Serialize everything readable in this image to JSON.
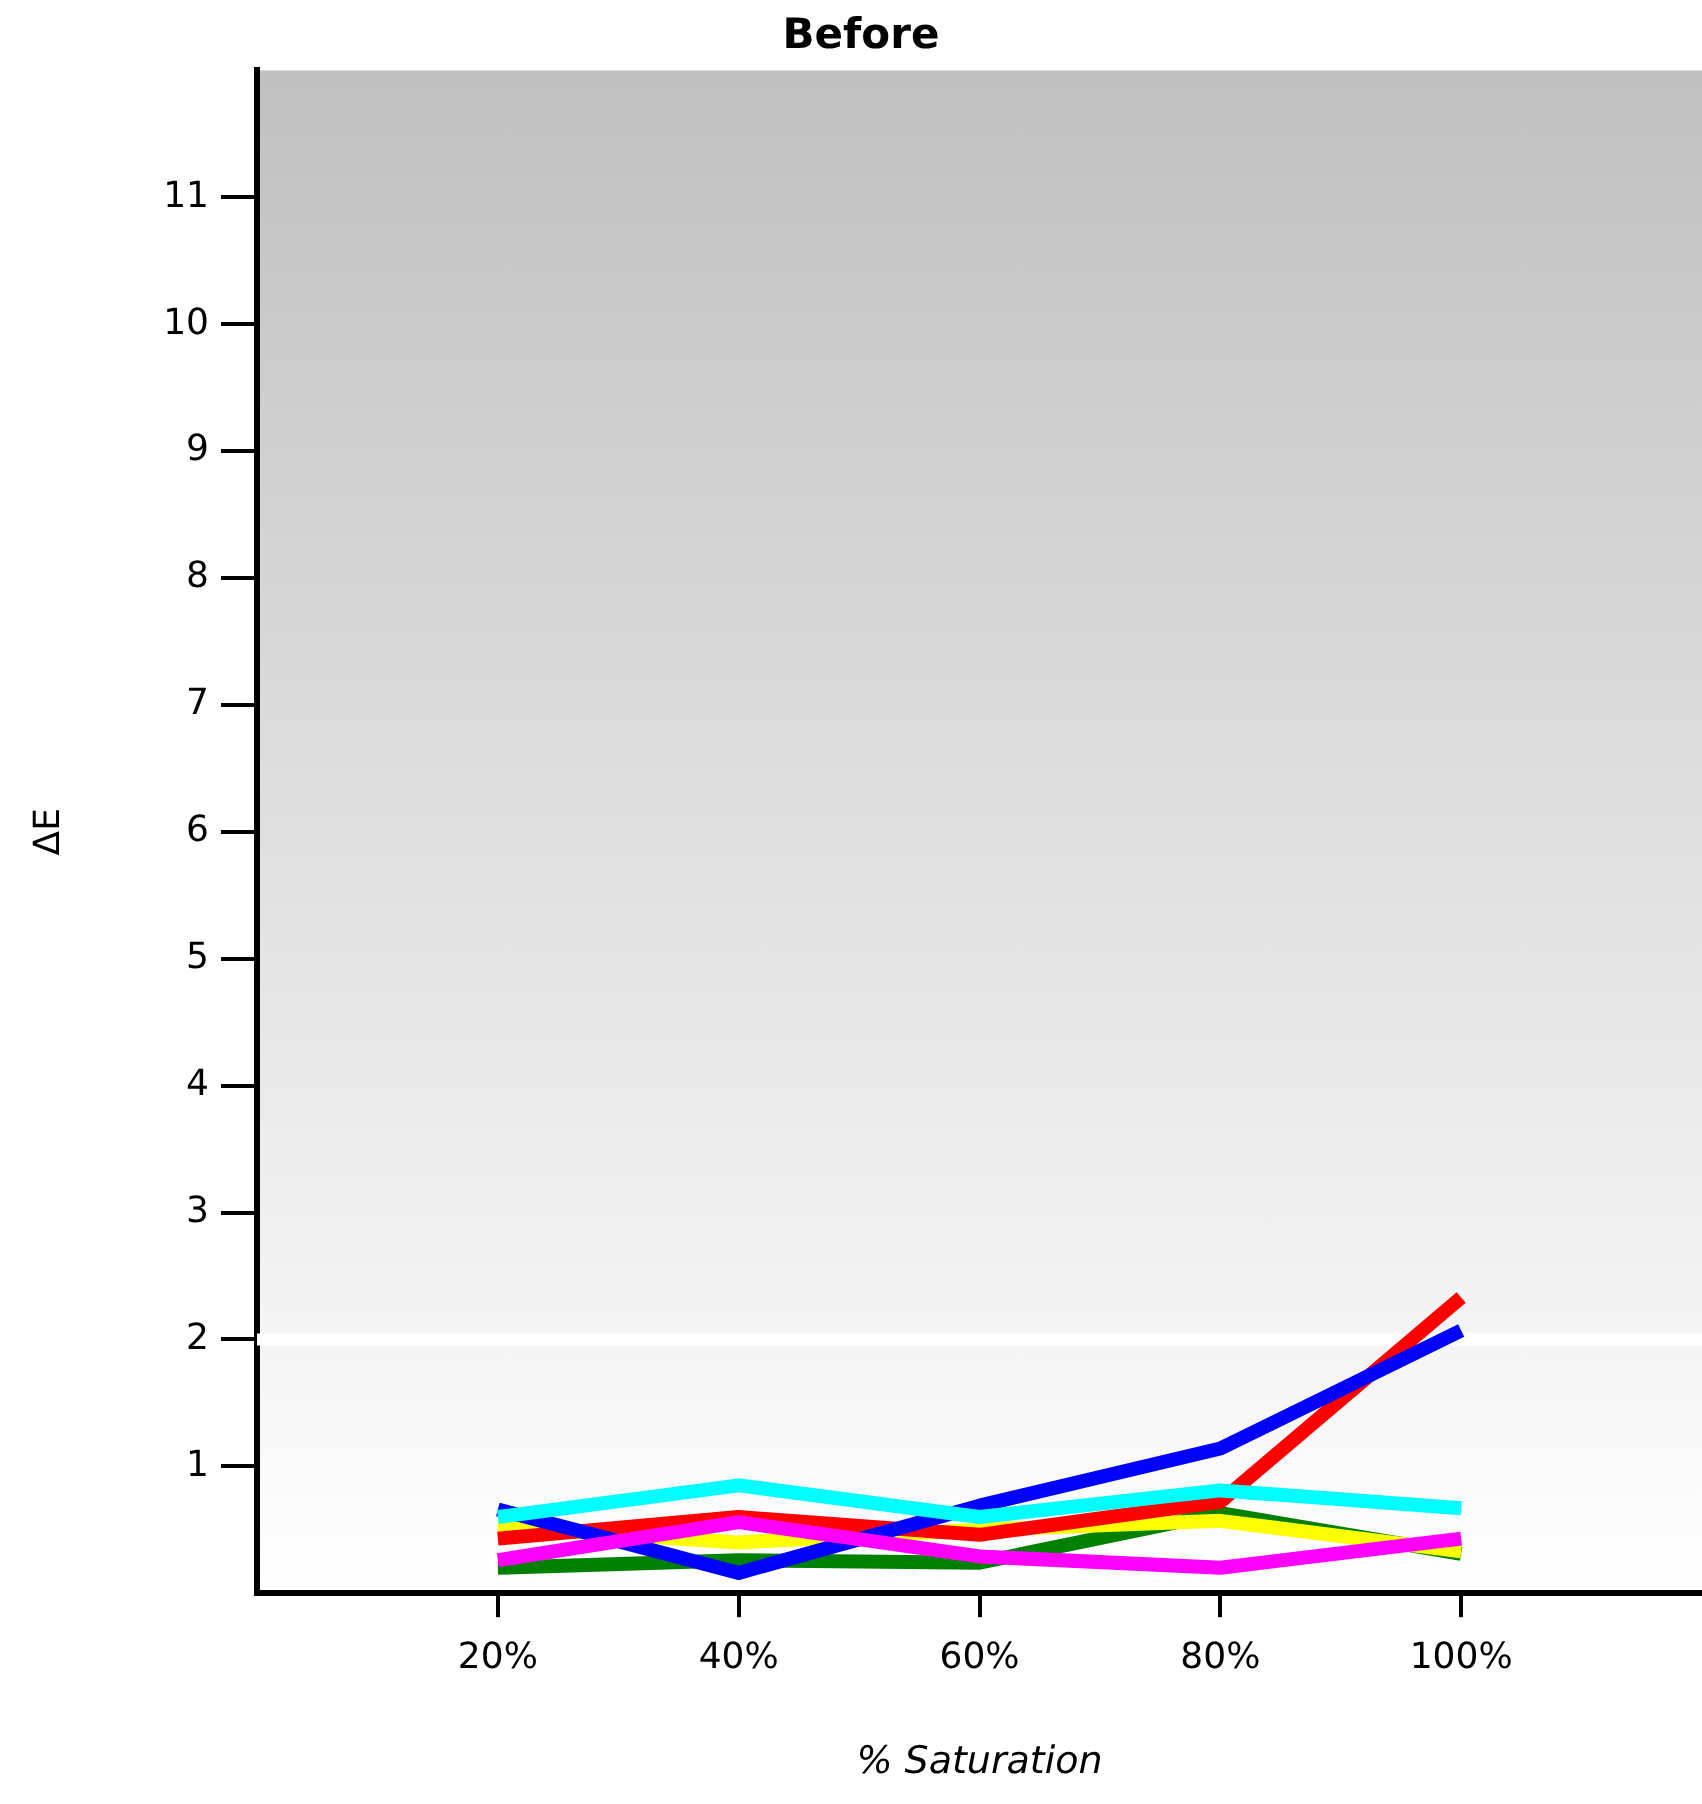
{
  "chart_data": {
    "type": "line",
    "title": "Before",
    "xlabel": "% Saturation",
    "ylabel": "ΔE",
    "x": [
      20,
      40,
      60,
      80,
      100
    ],
    "xlim": [
      0,
      120
    ],
    "xticks": [
      {
        "value": 20,
        "label": "20%"
      },
      {
        "value": 40,
        "label": "40%"
      },
      {
        "value": 60,
        "label": "60%"
      },
      {
        "value": 80,
        "label": "80%"
      },
      {
        "value": 100,
        "label": "100%"
      }
    ],
    "ylim": [
      0,
      12
    ],
    "yticks": [
      1,
      2,
      3,
      4,
      5,
      6,
      7,
      8,
      9,
      10,
      11
    ],
    "grid": false,
    "legend": false,
    "marker": "none",
    "line_style": "solid",
    "ref_lines": [
      {
        "axis": "y",
        "value": 2,
        "color": "#ffffff"
      }
    ],
    "series": [
      {
        "color": "#008000",
        "values": [
          0.2,
          0.26,
          0.24,
          0.63,
          0.31
        ]
      },
      {
        "color": "#ffff00",
        "values": [
          0.52,
          0.4,
          0.5,
          0.57,
          0.33
        ]
      },
      {
        "color": "#ff0000",
        "values": [
          0.43,
          0.6,
          0.46,
          0.72,
          2.33
        ]
      },
      {
        "color": "#0000ff",
        "values": [
          0.66,
          0.16,
          0.69,
          1.14,
          2.07
        ]
      },
      {
        "color": "#00ffff",
        "values": [
          0.6,
          0.85,
          0.6,
          0.81,
          0.67
        ]
      },
      {
        "color": "#ff00ff",
        "values": [
          0.26,
          0.56,
          0.29,
          0.2,
          0.43
        ]
      }
    ]
  }
}
